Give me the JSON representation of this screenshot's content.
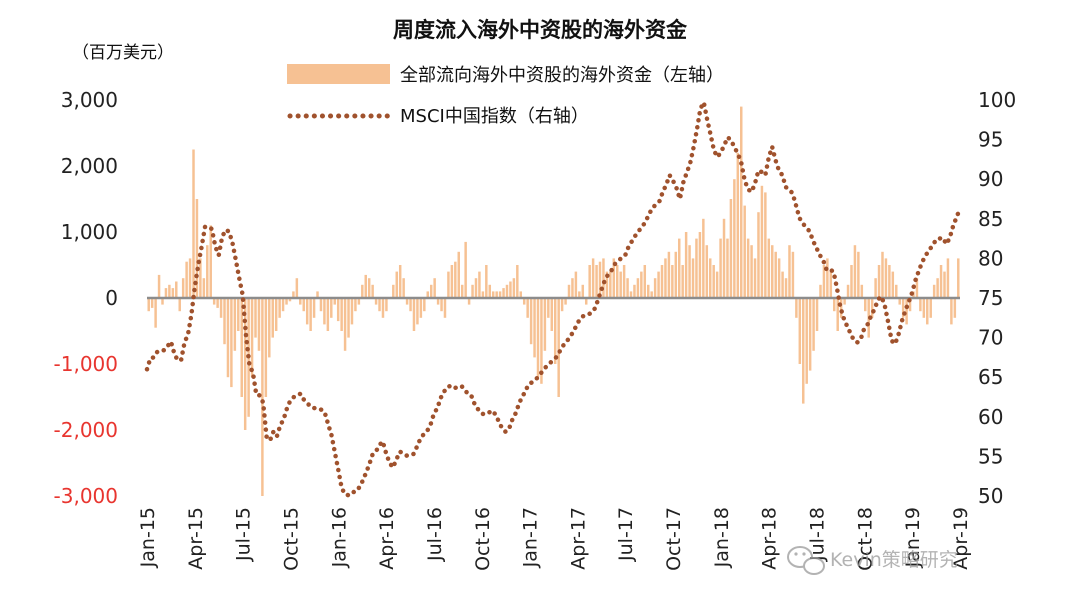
{
  "chart_data": {
    "type": "bar+line",
    "title": "周度流入海外中资股的海外资金",
    "left_unit": "（百万美元）",
    "left_axis": {
      "ylim": [
        -3000,
        3000
      ],
      "ticks": [
        3000,
        2000,
        1000,
        0,
        -1000,
        -2000,
        -3000
      ],
      "tick_labels": [
        "3,000",
        "2,000",
        "1,000",
        "0",
        "-1,000",
        "-2,000",
        "-3,000"
      ],
      "negative_color": "#e8352f"
    },
    "right_axis": {
      "ylim": [
        50,
        100
      ],
      "ticks": [
        100,
        95,
        90,
        85,
        80,
        75,
        70,
        65,
        60,
        55,
        50
      ],
      "tick_labels": [
        "100",
        "95",
        "90",
        "85",
        "80",
        "75",
        "70",
        "65",
        "60",
        "55",
        "50"
      ]
    },
    "x_axis": {
      "range": [
        "2015-01",
        "2019-04"
      ],
      "tick_labels": [
        "Jan-15",
        "Apr-15",
        "Jul-15",
        "Oct-15",
        "Jan-16",
        "Apr-16",
        "Jul-16",
        "Oct-16",
        "Jan-17",
        "Apr-17",
        "Jul-17",
        "Oct-17",
        "Jan-18",
        "Apr-18",
        "Jul-18",
        "Oct-18",
        "Jan-19",
        "Apr-19"
      ]
    },
    "bar_series": {
      "name": "全部流向海外中资股的海外资金（左轴）",
      "color": "#f6c193",
      "x_start": "2015-01",
      "freq": "weekly",
      "values": [
        -200,
        -150,
        -450,
        350,
        -100,
        150,
        200,
        150,
        250,
        -200,
        300,
        550,
        600,
        2250,
        1500,
        600,
        300,
        800,
        1100,
        -100,
        -150,
        -300,
        -700,
        -1200,
        -1350,
        -800,
        -500,
        -1500,
        -2000,
        -1800,
        -1200,
        -600,
        -800,
        -3000,
        -1500,
        -900,
        -600,
        -500,
        -300,
        -200,
        -100,
        -50,
        100,
        300,
        -100,
        -200,
        -400,
        -500,
        -300,
        100,
        -200,
        -400,
        -500,
        -300,
        -100,
        -350,
        -500,
        -800,
        -600,
        -400,
        -200,
        -100,
        200,
        350,
        300,
        200,
        -100,
        -200,
        -300,
        -200,
        0,
        200,
        400,
        500,
        300,
        -100,
        -200,
        -500,
        -400,
        -300,
        -200,
        100,
        200,
        300,
        -100,
        -200,
        -300,
        400,
        500,
        550,
        700,
        200,
        850,
        -100,
        200,
        300,
        400,
        100,
        500,
        200,
        100,
        100,
        100,
        150,
        200,
        250,
        300,
        500,
        100,
        -100,
        -300,
        -700,
        -900,
        -1200,
        -1300,
        -800,
        -300,
        -500,
        -1000,
        -1500,
        -200,
        -100,
        200,
        300,
        400,
        100,
        200,
        -100,
        500,
        600,
        500,
        550,
        600,
        400,
        400,
        600,
        500,
        400,
        500,
        300,
        100,
        200,
        300,
        400,
        500,
        200,
        100,
        300,
        400,
        500,
        600,
        700,
        500,
        700,
        900,
        500,
        1000,
        800,
        600,
        900,
        1000,
        1200,
        800,
        600,
        500,
        400,
        900,
        1200,
        900,
        1500,
        1800,
        2200,
        2900,
        1400,
        900,
        800,
        600,
        1300,
        1700,
        1600,
        900,
        800,
        700,
        600,
        400,
        300,
        800,
        700,
        -300,
        -1000,
        -1600,
        -1300,
        -1100,
        -800,
        -500,
        200,
        500,
        600,
        400,
        -200,
        -500,
        -300,
        -100,
        200,
        500,
        800,
        700,
        200,
        -200,
        -600,
        -300,
        300,
        500,
        700,
        600,
        500,
        400,
        200,
        -100,
        -300,
        -400,
        -200,
        100,
        300,
        -200,
        -300,
        -400,
        -300,
        200,
        300,
        500,
        400,
        600,
        -400,
        -300,
        600
      ]
    },
    "line_series": {
      "name": "MSCI中国指数（右轴）",
      "color": "#a0522d",
      "x_start": "2015-01",
      "freq": "weekly",
      "values": [
        66.0,
        67.4,
        67.5,
        68.2,
        68.4,
        68.4,
        68.9,
        69.5,
        68.0,
        67.1,
        67.2,
        69.4,
        70.4,
        72.9,
        76.4,
        79.2,
        81.5,
        84.0,
        84.0,
        83.7,
        81.5,
        80.4,
        82.7,
        83.6,
        83.4,
        82.0,
        79.8,
        77.5,
        75.4,
        70.2,
        66.5,
        65.6,
        62.8,
        62.7,
        61.8,
        57.5,
        57.0,
        58.1,
        57.5,
        58.9,
        59.7,
        61.1,
        62.1,
        62.5,
        62.8,
        62.9,
        62.1,
        61.7,
        61.2,
        61.1,
        61.1,
        60.9,
        60.6,
        59.1,
        57.7,
        55.5,
        53.3,
        51.0,
        50.2,
        50.1,
        50.5,
        50.5,
        51.0,
        51.8,
        52.8,
        53.9,
        55.2,
        55.6,
        56.4,
        56.9,
        55.4,
        54.2,
        53.6,
        54.6,
        55.6,
        55.4,
        55.1,
        55.3,
        55.3,
        56.2,
        57.2,
        57.8,
        58.2,
        59.0,
        60.4,
        61.1,
        62.4,
        63.2,
        63.8,
        63.9,
        63.6,
        63.8,
        63.9,
        63.5,
        62.8,
        62.6,
        61.5,
        60.9,
        60.4,
        60.3,
        60.5,
        60.8,
        60.3,
        59.4,
        58.5,
        58.1,
        58.5,
        59.7,
        60.5,
        61.8,
        62.6,
        63.5,
        64.2,
        64.4,
        64.8,
        65.3,
        65.9,
        66.4,
        66.8,
        67.2,
        67.6,
        68.4,
        69.1,
        69.6,
        70.2,
        70.9,
        71.8,
        72.5,
        72.8,
        72.9,
        73.1,
        73.6,
        74.7,
        76.0,
        77.2,
        78.0,
        78.5,
        79.3,
        79.7,
        80.1,
        80.4,
        81.5,
        82.2,
        82.9,
        83.5,
        84.0,
        84.7,
        85.6,
        86.4,
        86.8,
        87.2,
        88.4,
        89.3,
        90.5,
        89.8,
        88.9,
        87.5,
        89.6,
        90.8,
        92.0,
        94.0,
        96.3,
        98.9,
        99.7,
        97.5,
        95.6,
        93.6,
        92.8,
        93.4,
        94.3,
        95.3,
        94.9,
        94.0,
        93.2,
        92.0,
        89.8,
        88.7,
        88.4,
        89.5,
        91.1,
        90.9,
        90.5,
        92.7,
        94.1,
        92.4,
        91.1,
        90.5,
        89.0,
        88.7,
        88.2,
        86.7,
        85.1,
        84.4,
        83.9,
        83.4,
        82.2,
        81.3,
        80.4,
        79.7,
        78.5,
        78.6,
        78.3,
        76.2,
        73.8,
        72.4,
        71.4,
        70.5,
        69.6,
        69.4,
        69.9,
        71.2,
        71.7,
        72.8,
        73.6,
        74.8,
        75.2,
        74.0,
        71.9,
        69.6,
        69.2,
        70.4,
        72.1,
        73.4,
        74.5,
        75.7,
        77.3,
        78.5,
        79.6,
        80.4,
        81.1,
        81.6,
        82.4,
        82.5,
        82.6,
        81.8,
        82.6,
        84.1,
        85.2,
        86.3
      ]
    }
  },
  "watermark": {
    "text": "Kevin策略研究",
    "icon": "wechat-icon"
  }
}
